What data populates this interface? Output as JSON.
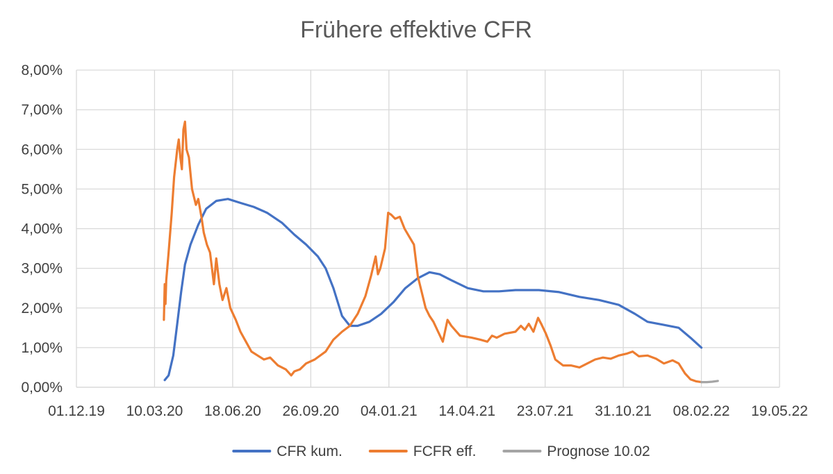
{
  "chart_data": {
    "type": "line",
    "title": "Frühere effektive CFR",
    "xlabel": "",
    "ylabel": "",
    "x_ticks": [
      "01.12.19",
      "10.03.20",
      "18.06.20",
      "26.09.20",
      "04.01.21",
      "14.04.21",
      "23.07.21",
      "31.10.21",
      "08.02.22",
      "19.05.22"
    ],
    "y_ticks": [
      "0,00%",
      "1,00%",
      "2,00%",
      "3,00%",
      "4,00%",
      "5,00%",
      "6,00%",
      "7,00%",
      "8,00%"
    ],
    "ylim": [
      0,
      8
    ],
    "y_unit": "%",
    "grid": true,
    "legend_position": "bottom",
    "series": [
      {
        "name": "CFR kum.",
        "color": "#4472c4",
        "points": [
          [
            "2020-03-23",
            0.18
          ],
          [
            "2020-03-28",
            0.3
          ],
          [
            "2020-04-03",
            0.8
          ],
          [
            "2020-04-08",
            1.6
          ],
          [
            "2020-04-13",
            2.4
          ],
          [
            "2020-04-18",
            3.1
          ],
          [
            "2020-04-25",
            3.6
          ],
          [
            "2020-05-05",
            4.1
          ],
          [
            "2020-05-15",
            4.5
          ],
          [
            "2020-05-28",
            4.7
          ],
          [
            "2020-06-12",
            4.75
          ],
          [
            "2020-06-28",
            4.65
          ],
          [
            "2020-07-15",
            4.55
          ],
          [
            "2020-08-01",
            4.4
          ],
          [
            "2020-08-20",
            4.15
          ],
          [
            "2020-09-05",
            3.85
          ],
          [
            "2020-09-20",
            3.6
          ],
          [
            "2020-10-05",
            3.3
          ],
          [
            "2020-10-15",
            3.0
          ],
          [
            "2020-10-25",
            2.5
          ],
          [
            "2020-11-05",
            1.8
          ],
          [
            "2020-11-15",
            1.55
          ],
          [
            "2020-11-25",
            1.55
          ],
          [
            "2020-12-10",
            1.65
          ],
          [
            "2020-12-25",
            1.85
          ],
          [
            "2021-01-10",
            2.15
          ],
          [
            "2021-01-25",
            2.5
          ],
          [
            "2021-02-10",
            2.75
          ],
          [
            "2021-02-25",
            2.9
          ],
          [
            "2021-03-10",
            2.85
          ],
          [
            "2021-03-25",
            2.7
          ],
          [
            "2021-04-15",
            2.5
          ],
          [
            "2021-05-05",
            2.42
          ],
          [
            "2021-05-25",
            2.42
          ],
          [
            "2021-06-15",
            2.45
          ],
          [
            "2021-07-15",
            2.45
          ],
          [
            "2021-08-10",
            2.4
          ],
          [
            "2021-09-05",
            2.28
          ],
          [
            "2021-09-30",
            2.2
          ],
          [
            "2021-10-25",
            2.08
          ],
          [
            "2021-11-15",
            1.85
          ],
          [
            "2021-12-01",
            1.65
          ],
          [
            "2021-12-20",
            1.58
          ],
          [
            "2022-01-10",
            1.5
          ],
          [
            "2022-01-25",
            1.25
          ],
          [
            "2022-02-08",
            1.0
          ]
        ]
      },
      {
        "name": "FCFR eff.",
        "color": "#ed7d31",
        "points": [
          [
            "2020-03-22",
            1.7
          ],
          [
            "2020-03-23",
            2.6
          ],
          [
            "2020-03-24",
            2.1
          ],
          [
            "2020-03-25",
            2.7
          ],
          [
            "2020-03-28",
            3.4
          ],
          [
            "2020-04-01",
            4.4
          ],
          [
            "2020-04-04",
            5.3
          ],
          [
            "2020-04-08",
            6.0
          ],
          [
            "2020-04-10",
            6.25
          ],
          [
            "2020-04-12",
            5.8
          ],
          [
            "2020-04-14",
            5.5
          ],
          [
            "2020-04-16",
            6.5
          ],
          [
            "2020-04-18",
            6.7
          ],
          [
            "2020-04-20",
            6.0
          ],
          [
            "2020-04-23",
            5.8
          ],
          [
            "2020-04-27",
            5.0
          ],
          [
            "2020-05-02",
            4.6
          ],
          [
            "2020-05-05",
            4.75
          ],
          [
            "2020-05-09",
            4.3
          ],
          [
            "2020-05-12",
            3.9
          ],
          [
            "2020-05-16",
            3.6
          ],
          [
            "2020-05-20",
            3.4
          ],
          [
            "2020-05-25",
            2.6
          ],
          [
            "2020-05-28",
            3.25
          ],
          [
            "2020-06-01",
            2.6
          ],
          [
            "2020-06-05",
            2.2
          ],
          [
            "2020-06-10",
            2.5
          ],
          [
            "2020-06-15",
            2.0
          ],
          [
            "2020-06-22",
            1.7
          ],
          [
            "2020-06-28",
            1.4
          ],
          [
            "2020-07-05",
            1.15
          ],
          [
            "2020-07-12",
            0.9
          ],
          [
            "2020-07-20",
            0.8
          ],
          [
            "2020-07-28",
            0.7
          ],
          [
            "2020-08-05",
            0.75
          ],
          [
            "2020-08-15",
            0.55
          ],
          [
            "2020-08-25",
            0.45
          ],
          [
            "2020-09-01",
            0.3
          ],
          [
            "2020-09-05",
            0.4
          ],
          [
            "2020-09-12",
            0.45
          ],
          [
            "2020-09-20",
            0.6
          ],
          [
            "2020-10-01",
            0.7
          ],
          [
            "2020-10-15",
            0.9
          ],
          [
            "2020-10-25",
            1.2
          ],
          [
            "2020-11-05",
            1.4
          ],
          [
            "2020-11-15",
            1.55
          ],
          [
            "2020-11-25",
            1.85
          ],
          [
            "2020-12-05",
            2.3
          ],
          [
            "2020-12-12",
            2.8
          ],
          [
            "2020-12-18",
            3.3
          ],
          [
            "2020-12-21",
            2.85
          ],
          [
            "2020-12-24",
            3.0
          ],
          [
            "2020-12-30",
            3.5
          ],
          [
            "2021-01-03",
            4.4
          ],
          [
            "2021-01-07",
            4.35
          ],
          [
            "2021-01-12",
            4.25
          ],
          [
            "2021-01-18",
            4.3
          ],
          [
            "2021-01-24",
            4.0
          ],
          [
            "2021-01-30",
            3.8
          ],
          [
            "2021-02-05",
            3.6
          ],
          [
            "2021-02-10",
            2.8
          ],
          [
            "2021-02-15",
            2.4
          ],
          [
            "2021-02-20",
            2.0
          ],
          [
            "2021-02-25",
            1.8
          ],
          [
            "2021-03-02",
            1.65
          ],
          [
            "2021-03-08",
            1.4
          ],
          [
            "2021-03-14",
            1.15
          ],
          [
            "2021-03-20",
            1.7
          ],
          [
            "2021-03-25",
            1.55
          ],
          [
            "2021-04-05",
            1.3
          ],
          [
            "2021-04-20",
            1.25
          ],
          [
            "2021-05-01",
            1.2
          ],
          [
            "2021-05-10",
            1.15
          ],
          [
            "2021-05-16",
            1.3
          ],
          [
            "2021-05-22",
            1.25
          ],
          [
            "2021-06-01",
            1.35
          ],
          [
            "2021-06-15",
            1.4
          ],
          [
            "2021-06-22",
            1.55
          ],
          [
            "2021-06-27",
            1.45
          ],
          [
            "2021-07-02",
            1.6
          ],
          [
            "2021-07-08",
            1.4
          ],
          [
            "2021-07-14",
            1.75
          ],
          [
            "2021-07-18",
            1.6
          ],
          [
            "2021-07-24",
            1.35
          ],
          [
            "2021-07-30",
            1.05
          ],
          [
            "2021-08-05",
            0.7
          ],
          [
            "2021-08-15",
            0.55
          ],
          [
            "2021-08-25",
            0.55
          ],
          [
            "2021-09-05",
            0.5
          ],
          [
            "2021-09-15",
            0.6
          ],
          [
            "2021-09-25",
            0.7
          ],
          [
            "2021-10-05",
            0.75
          ],
          [
            "2021-10-15",
            0.72
          ],
          [
            "2021-10-25",
            0.8
          ],
          [
            "2021-11-05",
            0.85
          ],
          [
            "2021-11-12",
            0.9
          ],
          [
            "2021-11-20",
            0.78
          ],
          [
            "2021-12-01",
            0.8
          ],
          [
            "2021-12-12",
            0.72
          ],
          [
            "2021-12-22",
            0.6
          ],
          [
            "2022-01-02",
            0.68
          ],
          [
            "2022-01-10",
            0.6
          ],
          [
            "2022-01-18",
            0.35
          ],
          [
            "2022-01-25",
            0.2
          ],
          [
            "2022-02-01",
            0.15
          ],
          [
            "2022-02-08",
            0.13
          ]
        ]
      },
      {
        "name": "Prognose 10.02",
        "color": "#a5a5a5",
        "points": [
          [
            "2022-02-08",
            0.13
          ],
          [
            "2022-02-15",
            0.13
          ],
          [
            "2022-02-22",
            0.14
          ],
          [
            "2022-03-01",
            0.16
          ]
        ]
      }
    ]
  }
}
